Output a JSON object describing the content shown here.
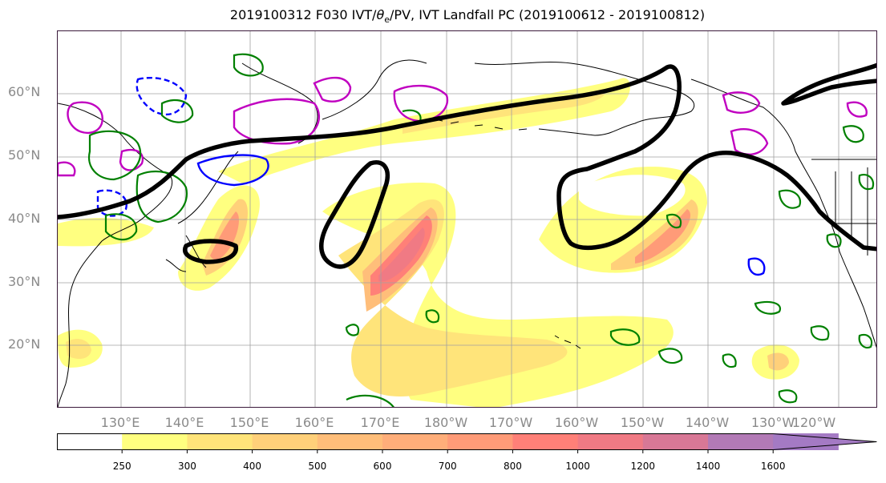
{
  "title": {
    "prefix": "2019100312 F030 IVT/",
    "theta": "θ",
    "theta_sub": "e",
    "suffix": "/PV, IVT Landfall PC (2019100612 - 2019100812)"
  },
  "lat_labels": [
    "60°N",
    "50°N",
    "40°N",
    "30°N",
    "20°N"
  ],
  "lon_labels": [
    "130°E",
    "140°E",
    "150°E",
    "160°E",
    "170°E",
    "180°W",
    "170°W",
    "160°W",
    "150°W",
    "140°W",
    "130°W",
    "120°W"
  ],
  "colorbar": {
    "ticks": [
      "250",
      "300",
      "400",
      "500",
      "600",
      "700",
      "800",
      "1000",
      "1200",
      "1400",
      "1600"
    ],
    "colors": [
      "#ffffff",
      "#ffff80",
      "#ffe47a",
      "#ffd07a",
      "#ffbe7a",
      "#ffae7a",
      "#ff9b78",
      "#ff8078",
      "#f07a84",
      "#d87896",
      "#b27ab6",
      "#a47ac4"
    ]
  },
  "legend_colors": {
    "ivt_pc_contour": "#000000",
    "theta_e_contour": "#008000",
    "pv_positive": "#c000c0",
    "pv_negative": "#0000ff"
  }
}
